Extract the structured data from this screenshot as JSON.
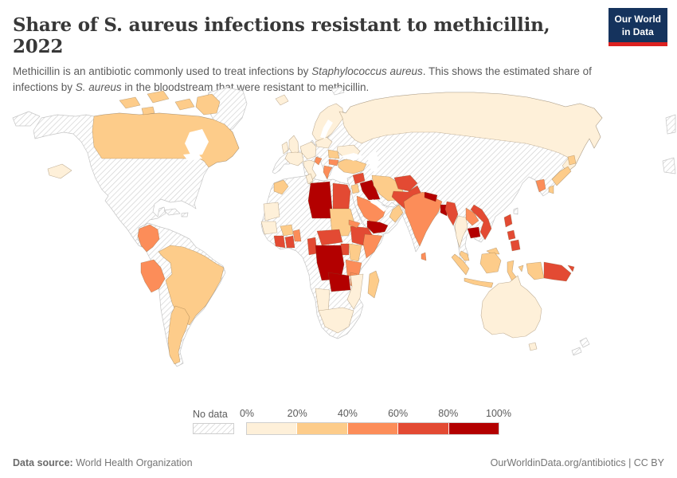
{
  "header": {
    "title": "Share of S. aureus infections resistant to methicillin, 2022",
    "subtitle_parts": [
      {
        "text": "Methicillin is an antibiotic commonly used to treat infections by ",
        "italic": false
      },
      {
        "text": "Staphylococcus aureus",
        "italic": true
      },
      {
        "text": ". This shows the estimated share of infections by ",
        "italic": false
      },
      {
        "text": "S. aureus",
        "italic": true
      },
      {
        "text": " in the bloodstream that were resistant to methicillin.",
        "italic": false
      }
    ],
    "logo": {
      "line1": "Our World",
      "line2": "in Data",
      "bg_color": "#15335d",
      "accent_color": "#dc2120"
    }
  },
  "legend": {
    "no_data_label": "No data",
    "tick_labels": [
      "0%",
      "20%",
      "40%",
      "60%",
      "80%",
      "100%"
    ],
    "bin_order": [
      "0-20%",
      "20-40%",
      "40-60%",
      "60-80%",
      "80-100%"
    ]
  },
  "footer": {
    "source_label": "Data source:",
    "source_value": " World Health Organization",
    "right_text": "OurWorldinData.org/antibiotics | CC BY"
  },
  "chart_data": {
    "type": "choropleth_map",
    "title": "Share of S. aureus infections resistant to methicillin, 2022",
    "year": "2022",
    "unit": "% of S. aureus bloodstream infections resistant to methicillin",
    "bin_colors": {
      "0-20%": "#fef0d9",
      "20-40%": "#fdcc8a",
      "40-60%": "#fc8d59",
      "60-80%": "#e34a33",
      "80-100%": "#b30000"
    },
    "no_data_style": "hatched",
    "countries": {
      "Russia": "0-20%",
      "France": "0-20%",
      "United Kingdom": "0-20%",
      "Ireland": "0-20%",
      "Iceland": "0-20%",
      "Scandinavia": "0-20%",
      "Germany and Central Europe": "0-20%",
      "Poland and Baltics": "0-20%",
      "Ukraine": "0-20%",
      "Italy": "0-20%",
      "Tunisia": "0-20%",
      "Mauritania": "0-20%",
      "Senegal and Guinea": "0-20%",
      "Namibia": "0-20%",
      "South Africa": "0-20%",
      "Mozambique": "0-20%",
      "Thailand": "0-20%",
      "Australia": "0-20%",
      "Canada": "20-40%",
      "Brazil": "20-40%",
      "Argentina": "20-40%",
      "Morocco": "20-40%",
      "Sudan": "20-40%",
      "Burkina Faso": "20-40%",
      "Kenya": "20-40%",
      "Madagascar": "20-40%",
      "Turkey": "20-40%",
      "Iran": "20-40%",
      "Jordan": "20-40%",
      "Oman": "20-40%",
      "Japan": "20-40%",
      "Indonesia": "20-40%",
      "Malaysia": "20-40%",
      "Romania": "20-40%",
      "Colombia": "40-60%",
      "Peru": "40-60%",
      "Greece": "40-60%",
      "Bulgaria": "40-60%",
      "Croatia": "40-60%",
      "Saudi Arabia": "40-60%",
      "India": "40-60%",
      "Sri Lanka": "40-60%",
      "Laos": "40-60%",
      "South Korea": "40-60%",
      "Somalia": "40-60%",
      "Eritrea": "40-60%",
      "Tanzania": "40-60%",
      "Malawi": "40-60%",
      "Benin and Togo": "40-60%",
      "Pakistan": "60-80%",
      "Afghanistan": "60-80%",
      "Syria": "60-80%",
      "Egypt": "60-80%",
      "Cote d'Ivoire": "60-80%",
      "Ghana": "60-80%",
      "Cameroon": "60-80%",
      "Central African Republic": "60-80%",
      "Ethiopia": "60-80%",
      "Uganda": "60-80%",
      "Myanmar": "60-80%",
      "Vietnam": "60-80%",
      "Philippines": "60-80%",
      "Papua New Guinea": "60-80%",
      "Libya": "80-100%",
      "Iraq": "80-100%",
      "Yemen": "80-100%",
      "Democratic Republic of Congo": "80-100%",
      "Zambia": "80-100%",
      "Nepal": "80-100%",
      "Bangladesh": "80-100%",
      "Cambodia": "80-100%"
    },
    "no_data_regions": [
      "United States",
      "Alaska",
      "Greenland",
      "Mexico",
      "Central America",
      "Cuba",
      "Hispaniola",
      "Venezuela",
      "Guyana and Suriname",
      "Ecuador",
      "Bolivia",
      "Chile",
      "Uruguay",
      "Spain",
      "Portugal",
      "Serbia",
      "Belarus",
      "Kazakhstan",
      "Central Asia",
      "Mongolia",
      "China",
      "North Korea",
      "Taiwan",
      "New Zealand",
      "Algeria",
      "Western Sahara",
      "Mali",
      "Niger",
      "Chad",
      "Nigeria",
      "South Sudan",
      "Angola",
      "Congo and Gabon",
      "Botswana",
      "Zimbabwe"
    ]
  }
}
